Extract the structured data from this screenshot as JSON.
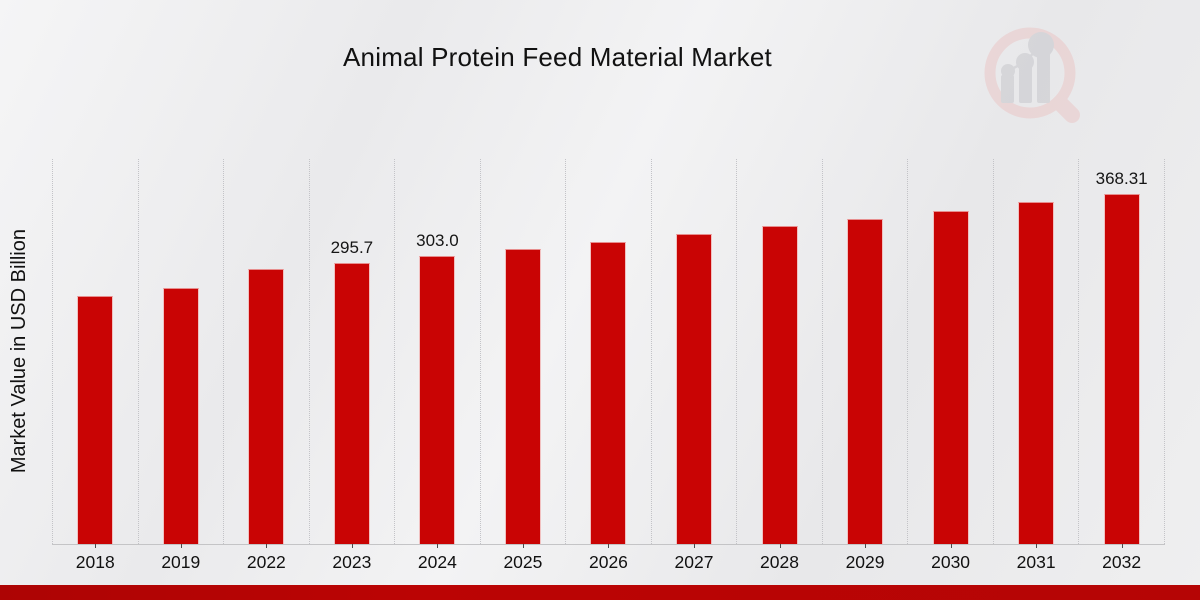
{
  "page": {
    "title": "Animal Protein Feed Material Market",
    "ylabel": "Market Value in USD Billion",
    "watermark_icon": "magnifier-bar-chart-logo"
  },
  "colors": {
    "bar": "#c90404",
    "footer_band": "#b50505",
    "gridline": "#c3c3c7",
    "axis_line": "#c4c4c6",
    "title_text": "#111111",
    "watermark_pink": "#eac7c7",
    "watermark_gray": "#c7c7cc"
  },
  "chart_data": {
    "type": "bar",
    "title": "Animal Protein Feed Material Market",
    "xlabel": "",
    "ylabel": "Market Value in USD Billion",
    "categories": [
      "2018",
      "2019",
      "2022",
      "2023",
      "2024",
      "2025",
      "2026",
      "2027",
      "2028",
      "2029",
      "2030",
      "2031",
      "2032"
    ],
    "values": [
      260.4,
      269.5,
      289.5,
      295.7,
      303.0,
      310.5,
      318.2,
      326.0,
      334.1,
      342.3,
      350.8,
      359.5,
      368.31
    ],
    "bar_labels": [
      "",
      "",
      "",
      "295.7",
      "303.0",
      "",
      "",
      "",
      "",
      "",
      "",
      "",
      "368.31"
    ],
    "ylim": [
      0,
      405
    ],
    "grid": "vertical-dotted",
    "legend": false,
    "bar_color": "#c90404",
    "y_tick_labels_shown": false
  }
}
